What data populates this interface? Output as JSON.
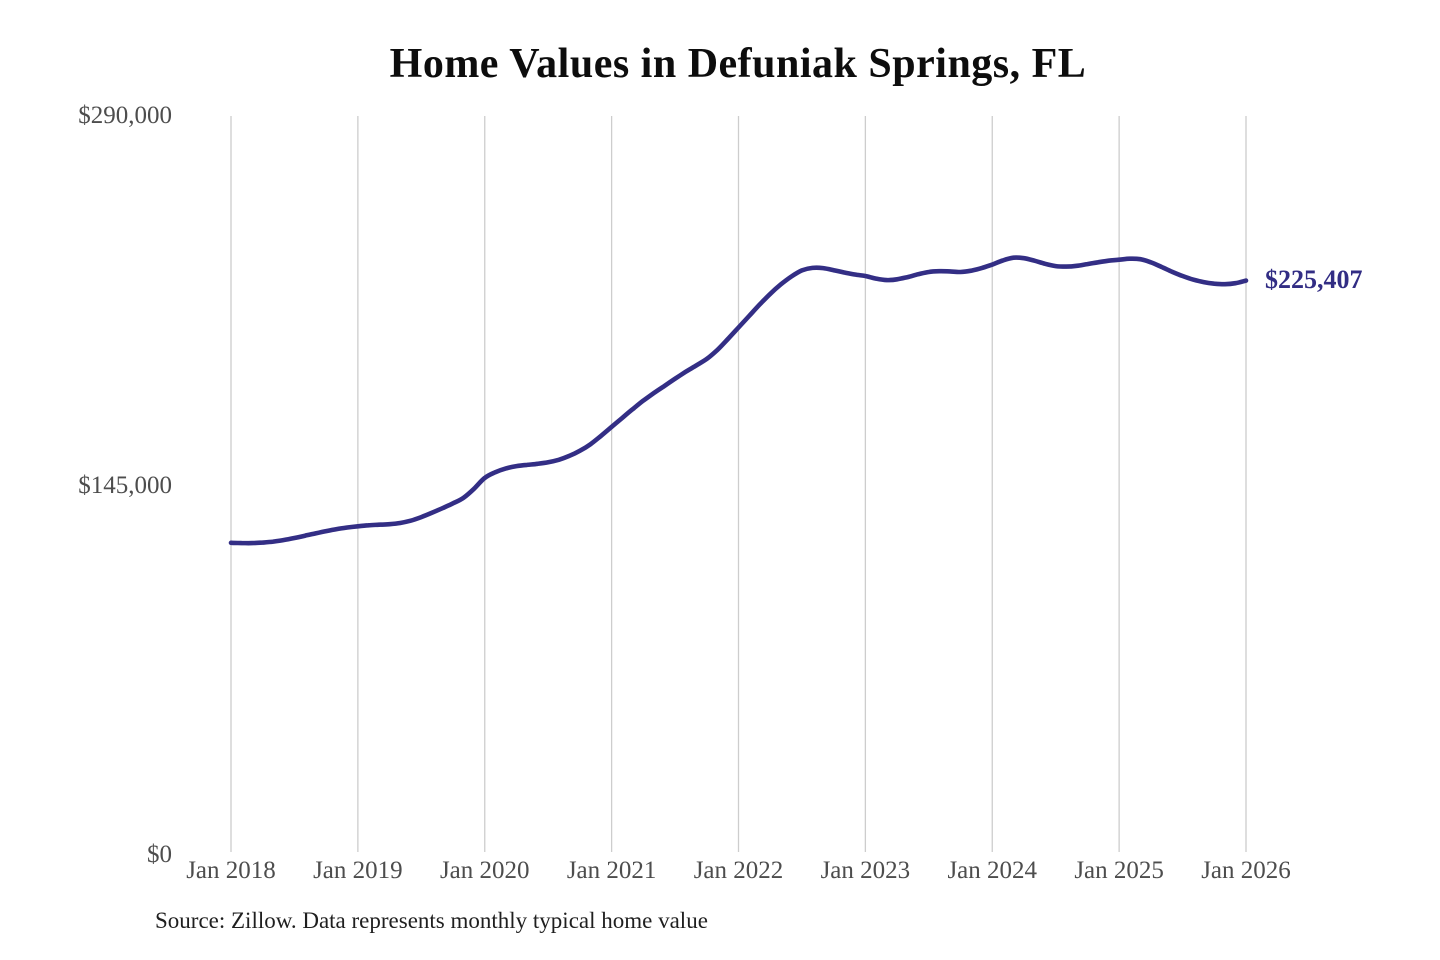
{
  "title": "Home Values in Defuniak Springs, FL",
  "end_label": "$225,407",
  "source": "Source: Zillow. Data represents monthly typical home value",
  "colors": {
    "line": "#332e85",
    "grid": "#cdcdcd",
    "axis_text": "#4d4d4d",
    "title_text": "#0d0d0d",
    "end_label_text": "#322d84",
    "background": "#ffffff"
  },
  "chart_data": {
    "type": "line",
    "title": "Home Values in Defuniak Springs, FL",
    "xlabel": "",
    "ylabel": "",
    "ylim": [
      0,
      290000
    ],
    "grid": "vertical-only",
    "legend": "none",
    "y_ticks": [
      {
        "label": "$0",
        "value": 0
      },
      {
        "label": "$145,000",
        "value": 145000
      },
      {
        "label": "$290,000",
        "value": 290000
      }
    ],
    "x_tick_labels": [
      "Jan 2018",
      "Jan 2019",
      "Jan 2020",
      "Jan 2021",
      "Jan 2022",
      "Jan 2023",
      "Jan 2024",
      "Jan 2025",
      "Jan 2026"
    ],
    "end_value": 225407,
    "end_annotation": "$225,407",
    "series": [
      {
        "name": "Monthly typical home value",
        "months": [
          "2018-01",
          "2018-02",
          "2018-03",
          "2018-04",
          "2018-05",
          "2018-06",
          "2018-07",
          "2018-08",
          "2018-09",
          "2018-10",
          "2018-11",
          "2018-12",
          "2019-01",
          "2019-02",
          "2019-03",
          "2019-04",
          "2019-05",
          "2019-06",
          "2019-07",
          "2019-08",
          "2019-09",
          "2019-10",
          "2019-11",
          "2019-12",
          "2020-01",
          "2020-02",
          "2020-03",
          "2020-04",
          "2020-05",
          "2020-06",
          "2020-07",
          "2020-08",
          "2020-09",
          "2020-10",
          "2020-11",
          "2020-12",
          "2021-01",
          "2021-02",
          "2021-03",
          "2021-04",
          "2021-05",
          "2021-06",
          "2021-07",
          "2021-08",
          "2021-09",
          "2021-10",
          "2021-11",
          "2021-12",
          "2022-01",
          "2022-02",
          "2022-03",
          "2022-04",
          "2022-05",
          "2022-06",
          "2022-07",
          "2022-08",
          "2022-09",
          "2022-10",
          "2022-11",
          "2022-12",
          "2023-01",
          "2023-02",
          "2023-03",
          "2023-04",
          "2023-05",
          "2023-06",
          "2023-07",
          "2023-08",
          "2023-09",
          "2023-10",
          "2023-11",
          "2023-12",
          "2024-01",
          "2024-02",
          "2024-03",
          "2024-04",
          "2024-05",
          "2024-06",
          "2024-07",
          "2024-08",
          "2024-09",
          "2024-10",
          "2024-11",
          "2024-12",
          "2025-01",
          "2025-02",
          "2025-03",
          "2025-04",
          "2025-05",
          "2025-06",
          "2025-07",
          "2025-08",
          "2025-09",
          "2025-10",
          "2025-11",
          "2025-12",
          "2026-01"
        ],
        "values": [
          122500,
          122400,
          122400,
          122600,
          123000,
          123600,
          124400,
          125300,
          126200,
          127100,
          127900,
          128500,
          129000,
          129400,
          129600,
          129800,
          130300,
          131200,
          132600,
          134300,
          136100,
          138000,
          140200,
          143800,
          148000,
          150200,
          151700,
          152600,
          153100,
          153500,
          154100,
          155100,
          156600,
          158600,
          161200,
          164500,
          168000,
          171500,
          175000,
          178300,
          181300,
          184100,
          186900,
          189600,
          192100,
          194700,
          198200,
          202500,
          207000,
          211500,
          216000,
          220200,
          223900,
          227000,
          229400,
          230400,
          230300,
          229500,
          228600,
          227800,
          227200,
          226200,
          225600,
          225900,
          226800,
          227900,
          228800,
          229100,
          229000,
          228800,
          229300,
          230300,
          231700,
          233300,
          234400,
          234200,
          233200,
          232000,
          231100,
          230900,
          231200,
          231900,
          232600,
          233200,
          233600,
          234000,
          233800,
          232600,
          230800,
          228900,
          227200,
          225800,
          224800,
          224200,
          224000,
          224400,
          225407
        ]
      }
    ]
  }
}
